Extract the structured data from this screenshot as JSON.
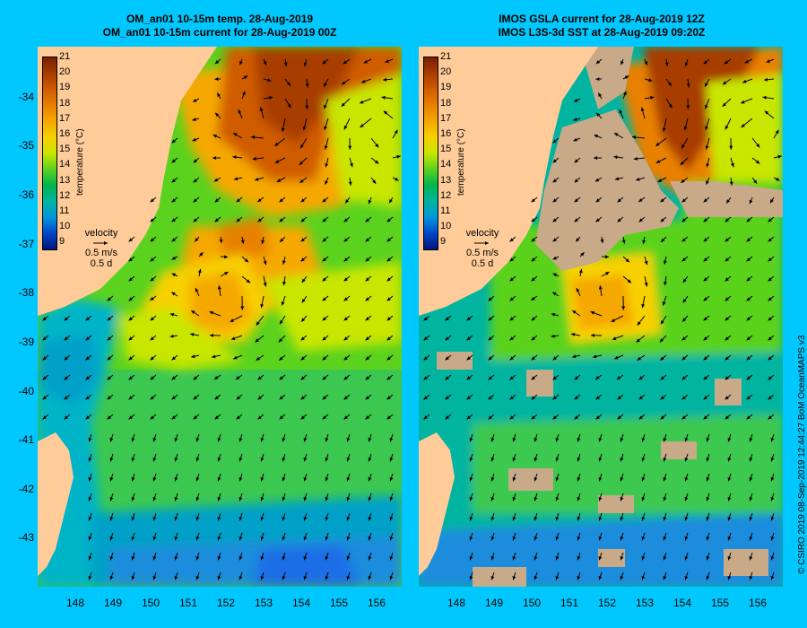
{
  "panels": [
    {
      "title_line1": "OM_an01 10-15m temp. 28-Aug-2019",
      "title_line2": "OM_an01 10-15m current for 28-Aug-2019 00Z",
      "layer": "model temperature"
    },
    {
      "title_line1": "IMOS GSLA current for 28-Aug-2019 12Z",
      "title_line2": "IMOS L3S-3d SST at 28-Aug-2019 09:20Z",
      "layer": "satellite SST"
    }
  ],
  "colorbar": {
    "title": "temperature (°C)",
    "ticks": [
      "21",
      "20",
      "19",
      "18",
      "17",
      "16",
      "15",
      "14",
      "13",
      "12",
      "11",
      "10",
      "9"
    ],
    "colors": [
      "#7a1e00",
      "#a83c00",
      "#d05c00",
      "#e88000",
      "#f5a800",
      "#f7d000",
      "#c8e600",
      "#5ad21e",
      "#00b450",
      "#00b4a0",
      "#0096dc",
      "#0046c8",
      "#00147a"
    ]
  },
  "velocity_legend": {
    "label": "velocity",
    "speed": "0.5 m/s",
    "duration": "0.5 d"
  },
  "y_axis_labels": [
    "-34",
    "-35",
    "-36",
    "-37",
    "-38",
    "-39",
    "-40",
    "-41",
    "-42",
    "-43"
  ],
  "x_axis_labels": [
    "148",
    "149",
    "150",
    "151",
    "152",
    "153",
    "154",
    "155",
    "156"
  ],
  "credit": "© CSIRO 2019   08-Sep-2019 12:44:27 BoM OceanMAPS v3",
  "colors": {
    "background": "#00c8ff",
    "land": "#ffcc99",
    "cloud_mask": "#c8aa88",
    "arrow": "#000000"
  }
}
